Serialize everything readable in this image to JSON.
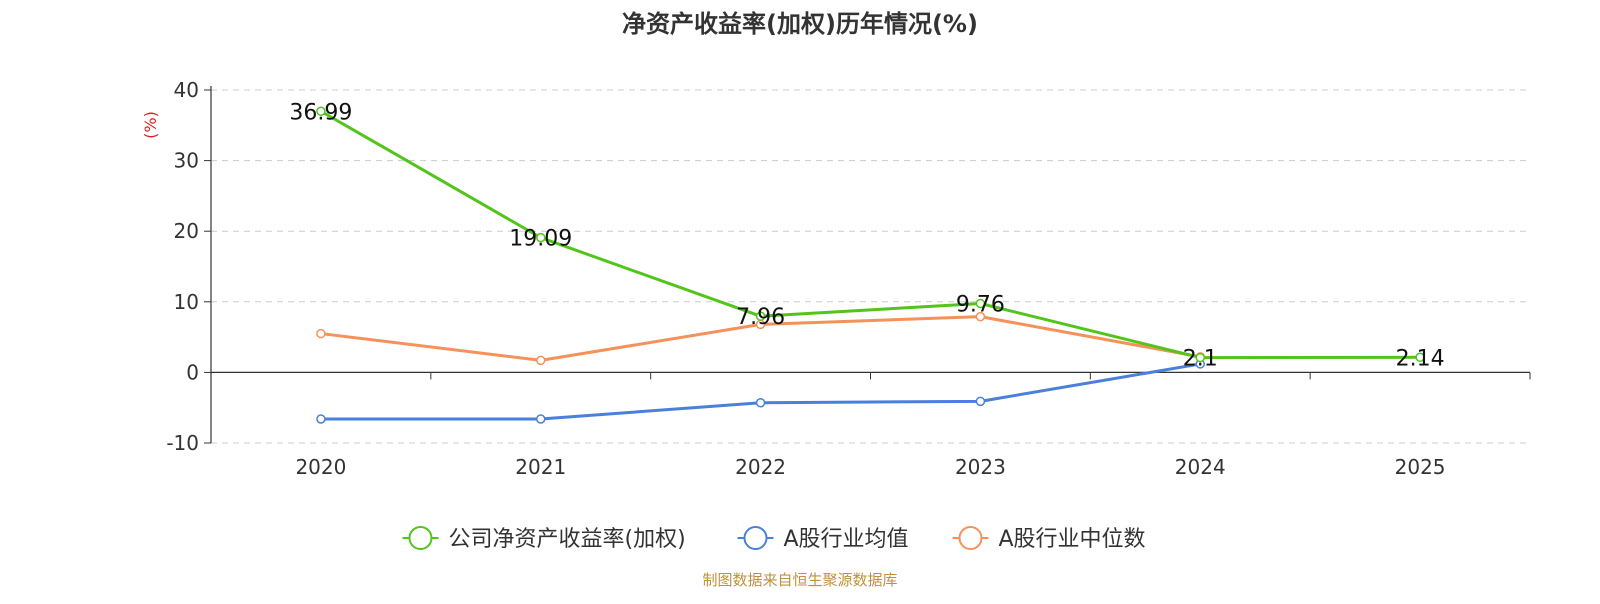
{
  "chart_data": {
    "type": "line",
    "title": "净资产收益率(加权)历年情况(%)",
    "ylabel": "(%)",
    "xlabel": "",
    "categories": [
      "2020",
      "2021",
      "2022",
      "2023",
      "2024",
      "2025"
    ],
    "ylim": [
      -10,
      40
    ],
    "yticks": [
      40,
      30,
      20,
      10,
      0,
      -10
    ],
    "grid": true,
    "legend_position": "bottom",
    "series": [
      {
        "name": "公司净资产收益率(加权)",
        "color": "#52c41a",
        "values": [
          36.99,
          19.09,
          7.96,
          9.76,
          2.1,
          2.14
        ],
        "labels": [
          "36.99",
          "19.09",
          "7.96",
          "9.76",
          "2.1",
          "2.14"
        ]
      },
      {
        "name": "A股行业均值",
        "color": "#4a7fdb",
        "values": [
          -6.6,
          -6.6,
          -4.3,
          -4.1,
          1.2,
          null
        ]
      },
      {
        "name": "A股行业中位数",
        "color": "#f5915a",
        "values": [
          5.5,
          1.7,
          6.8,
          7.9,
          2.2,
          null
        ]
      }
    ],
    "source": "制图数据来自恒生聚源数据库",
    "source_color": "#c0913c",
    "ylabel_color": "#e02020"
  }
}
